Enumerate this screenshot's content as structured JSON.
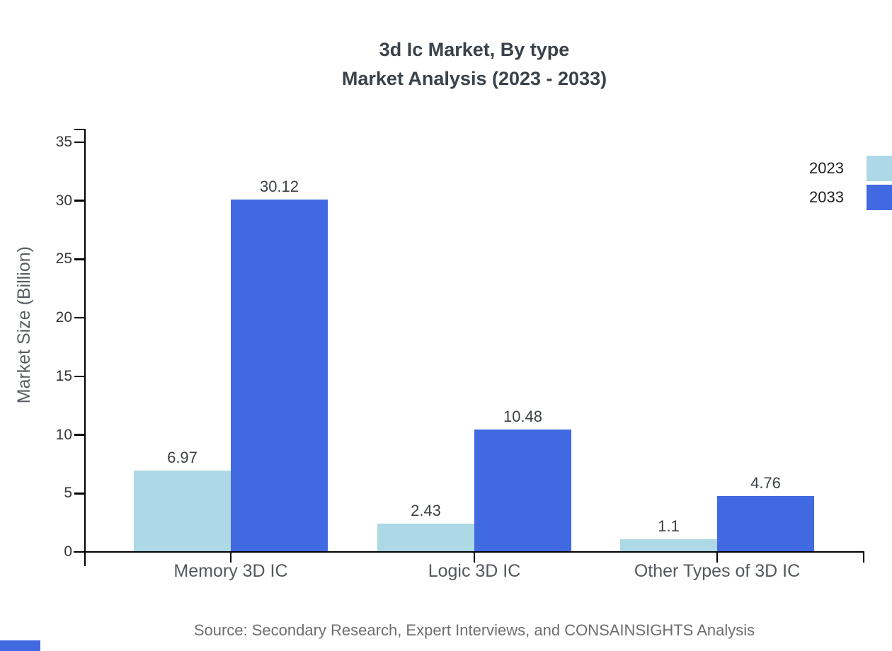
{
  "header": {
    "title_line1": "3d Ic Market, By type",
    "title_line2": "Market Analysis (2023 - 2033)"
  },
  "legend": {
    "items": [
      {
        "label": "2023",
        "color": "#ADD8E6"
      },
      {
        "label": "2033",
        "color": "#4169E1"
      }
    ]
  },
  "y_axis": {
    "label": "Market Size (Billion)"
  },
  "chart_data": {
    "type": "bar",
    "title": "3d Ic Market, By type Market Analysis (2023 - 2033)",
    "categories": [
      "Memory 3D IC",
      "Logic 3D IC",
      "Other Types of 3D IC"
    ],
    "series": [
      {
        "name": "2023",
        "color": "#ADD8E6",
        "values": [
          6.97,
          2.43,
          1.1
        ],
        "value_labels": [
          "6.97",
          "2.43",
          "1.1"
        ]
      },
      {
        "name": "2033",
        "color": "#4169E1",
        "values": [
          30.12,
          10.48,
          4.76
        ],
        "value_labels": [
          "30.12",
          "10.48",
          "4.76"
        ]
      }
    ],
    "xlabel": "",
    "ylabel": "Market Size (Billion)",
    "ylim": [
      0,
      35
    ],
    "yticks": [
      0,
      5,
      10,
      15,
      20,
      25,
      30,
      35
    ],
    "grid": false,
    "legend_position": "top-right"
  },
  "footer": {
    "source_text": "Source: Secondary Research, Expert Interviews, and CONSAINSIGHTS Analysis"
  },
  "colors": {
    "bar_2023": "#ADD8E6",
    "bar_2033": "#4169E1",
    "axis": "#000000",
    "corner_accent": "#4169E1"
  }
}
